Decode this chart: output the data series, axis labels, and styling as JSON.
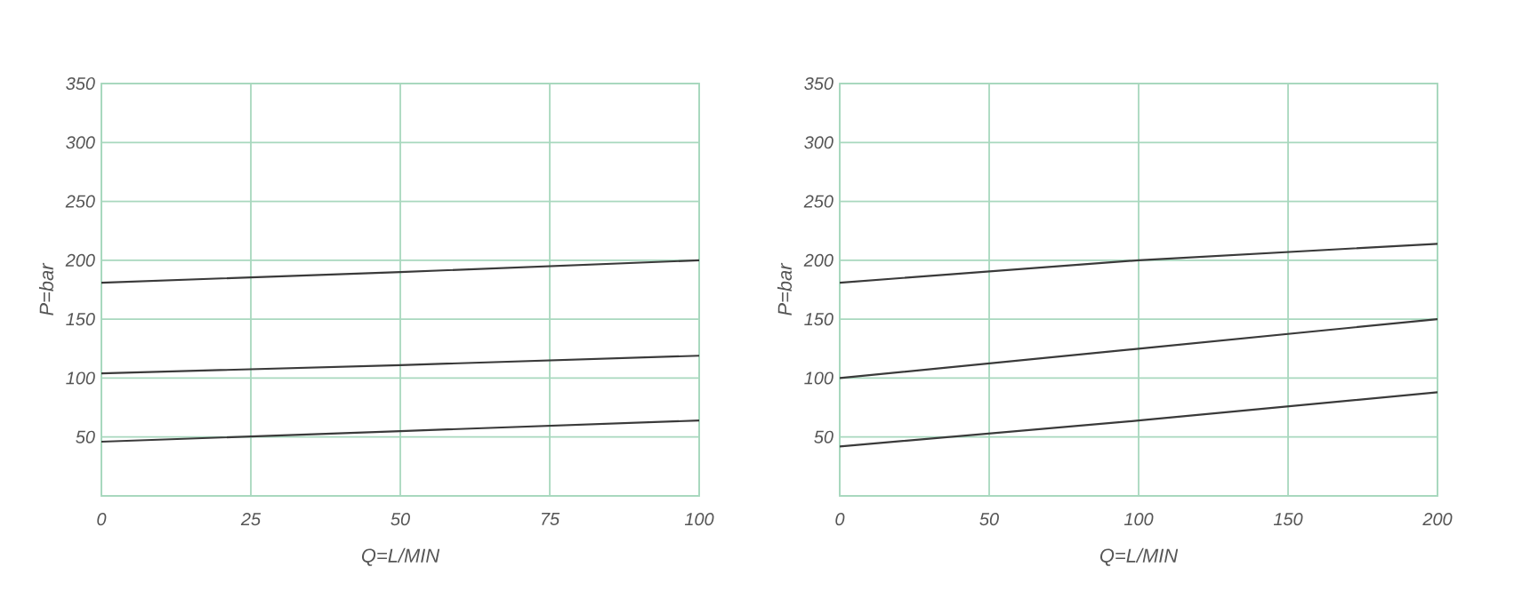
{
  "chart_data": [
    {
      "type": "line",
      "xlabel": "Q=L/MIN",
      "ylabel": "P=bar",
      "x": [
        0,
        50,
        100
      ],
      "series": [
        {
          "color": "#3a3a3a",
          "values": [
            181,
            190,
            200
          ]
        },
        {
          "color": "#3a3a3a",
          "values": [
            104,
            111,
            119
          ]
        },
        {
          "color": "#3a3a3a",
          "values": [
            46,
            55,
            64
          ]
        }
      ],
      "xlim": [
        0,
        100
      ],
      "ylim": [
        0,
        350
      ],
      "xticks": [
        0,
        25,
        50,
        75,
        100
      ],
      "yticks": [
        50,
        100,
        150,
        200,
        250,
        300,
        350
      ],
      "grid": true
    },
    {
      "type": "line",
      "xlabel": "Q=L/MIN",
      "ylabel": "P=bar",
      "x": [
        0,
        100,
        200
      ],
      "series": [
        {
          "color": "#3a3a3a",
          "values": [
            181,
            200,
            214
          ]
        },
        {
          "color": "#3a3a3a",
          "values": [
            100,
            125,
            150
          ]
        },
        {
          "color": "#3a3a3a",
          "values": [
            42,
            64,
            88
          ]
        }
      ],
      "xlim": [
        0,
        200
      ],
      "ylim": [
        0,
        350
      ],
      "xticks": [
        0,
        50,
        100,
        150,
        200
      ],
      "yticks": [
        50,
        100,
        150,
        200,
        250,
        300,
        350
      ],
      "grid": true
    }
  ]
}
